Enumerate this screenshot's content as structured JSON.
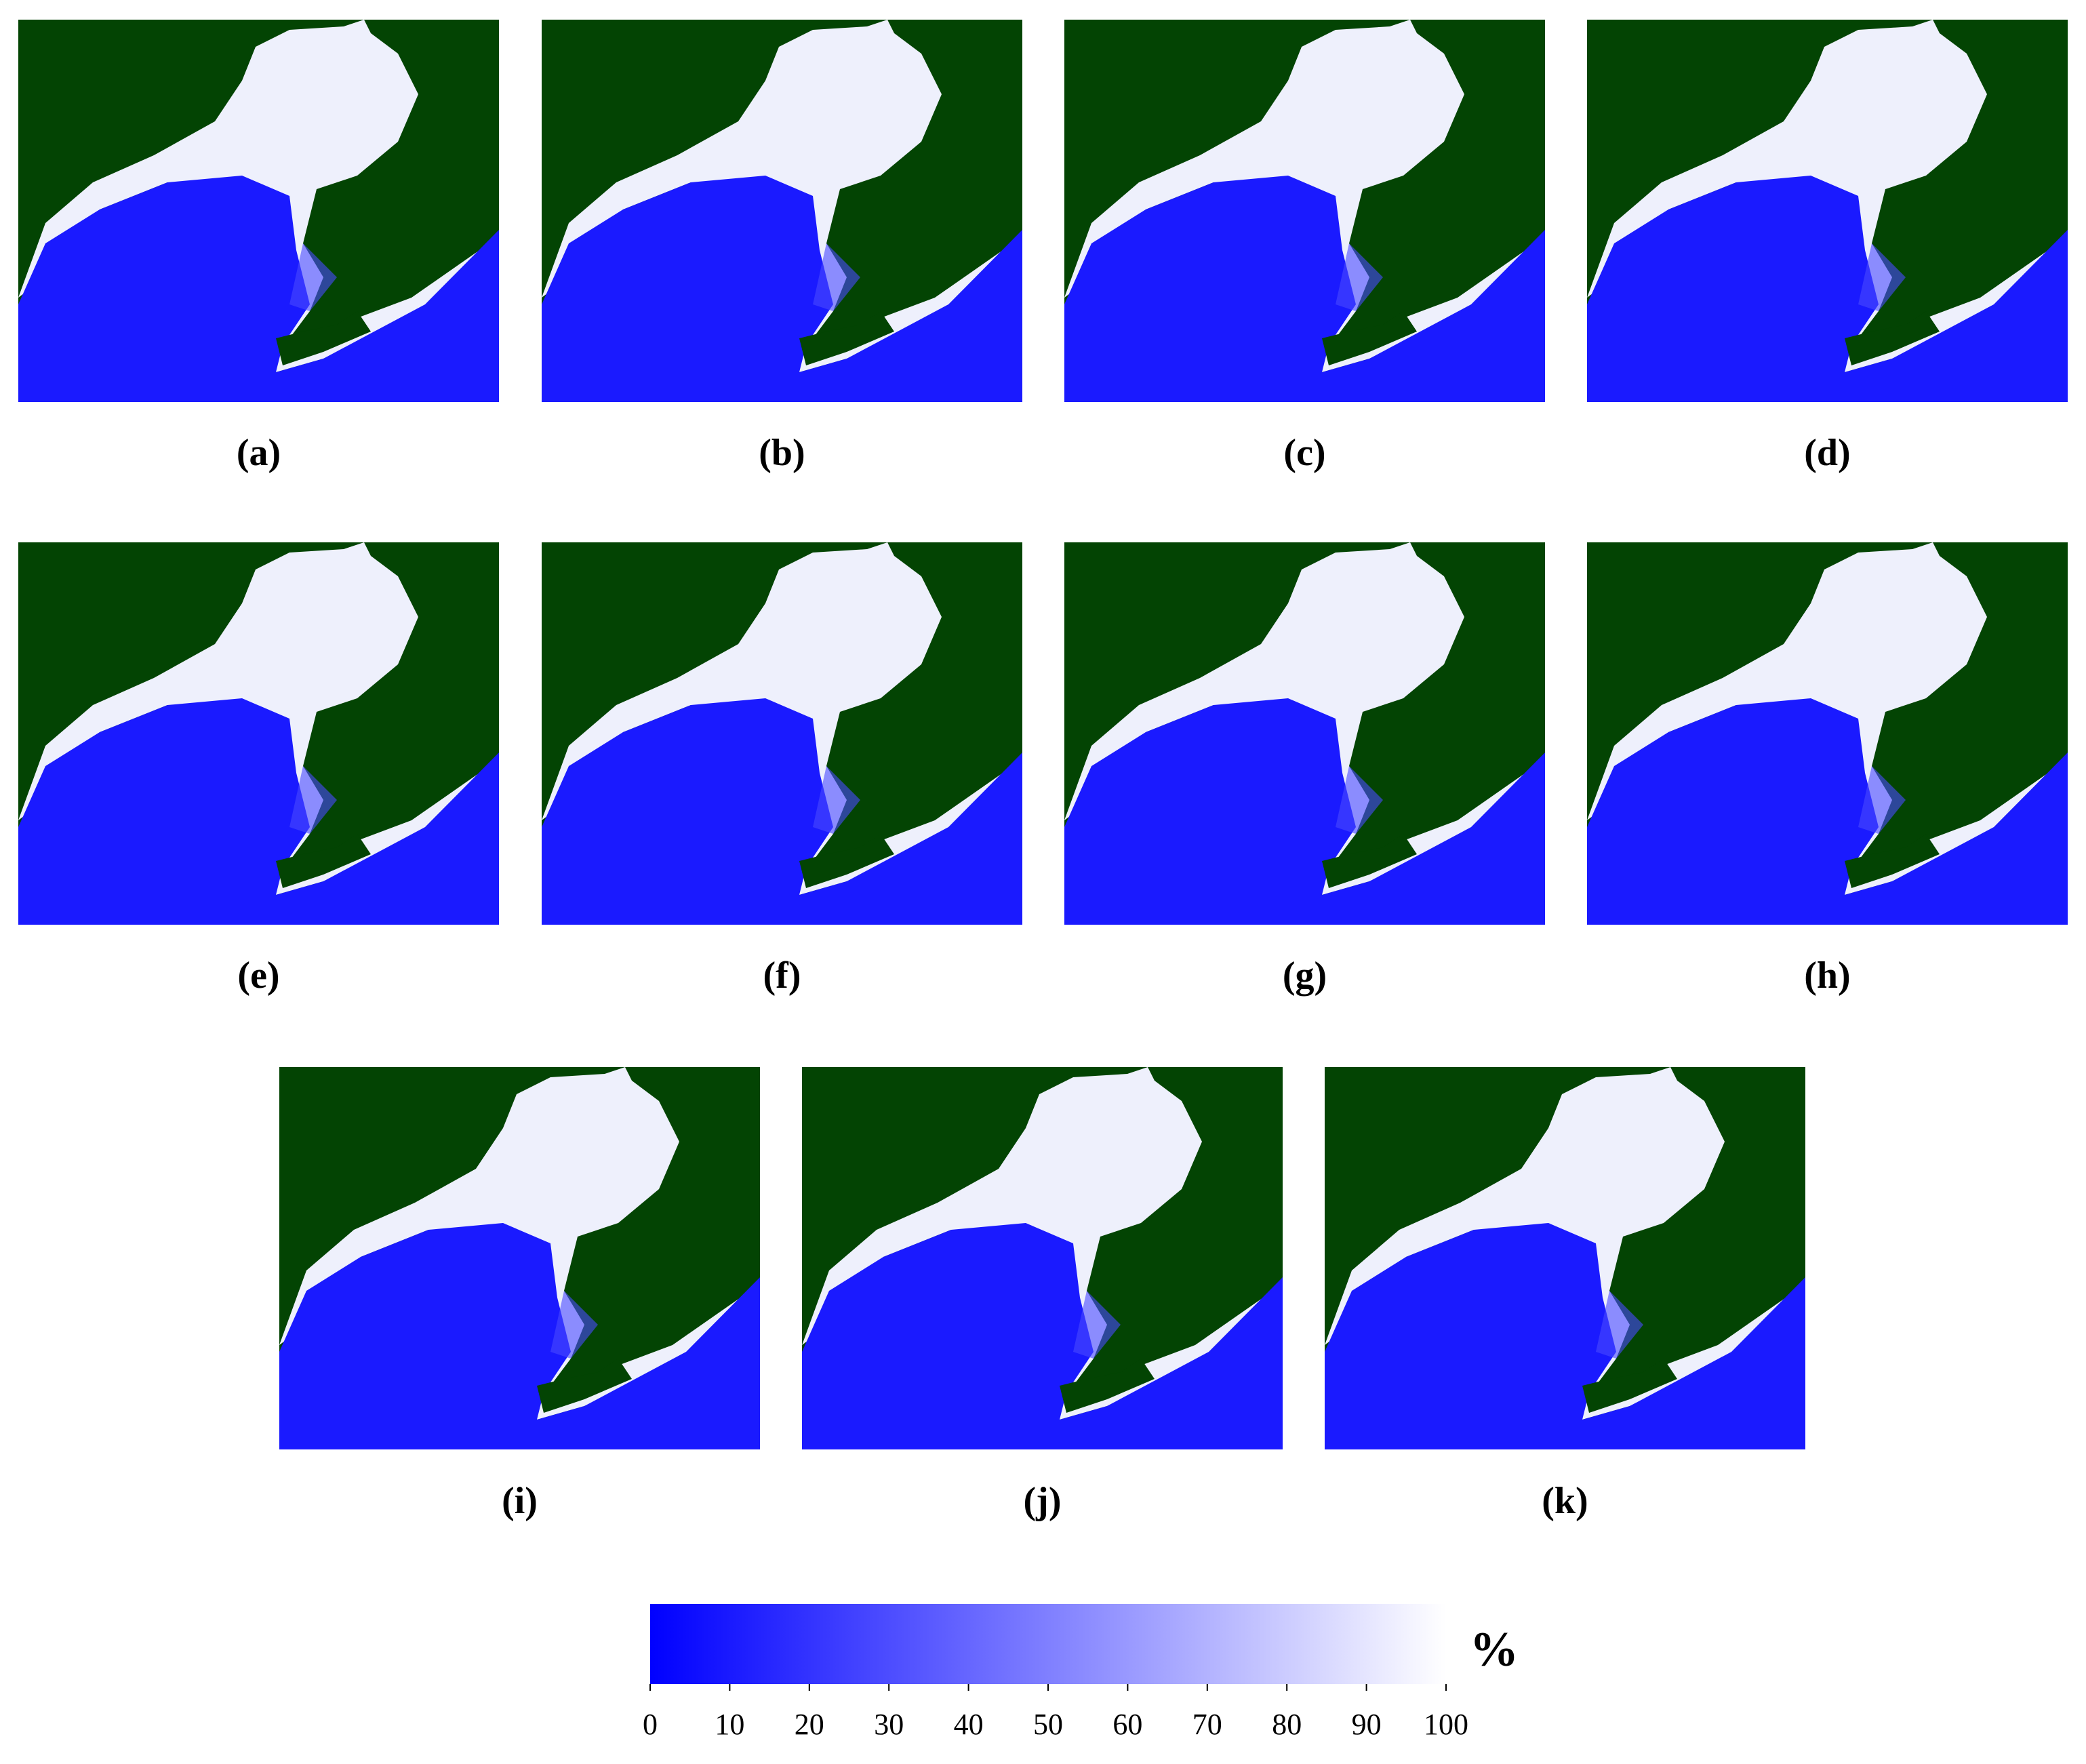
{
  "panels": [
    {
      "label": "(a)"
    },
    {
      "label": "(b)"
    },
    {
      "label": "(c)"
    },
    {
      "label": "(d)"
    },
    {
      "label": "(e)"
    },
    {
      "label": "(f)"
    },
    {
      "label": "(g)"
    },
    {
      "label": "(h)"
    },
    {
      "label": "(i)"
    },
    {
      "label": "(j)"
    },
    {
      "label": "(k)"
    }
  ],
  "colorbar": {
    "unit": "%",
    "lim": [
      0,
      100
    ],
    "ticks": [
      0,
      10,
      20,
      30,
      40,
      50,
      60,
      70,
      80,
      90,
      100
    ],
    "colors": [
      "#0000ff",
      "#ffffff"
    ]
  }
}
